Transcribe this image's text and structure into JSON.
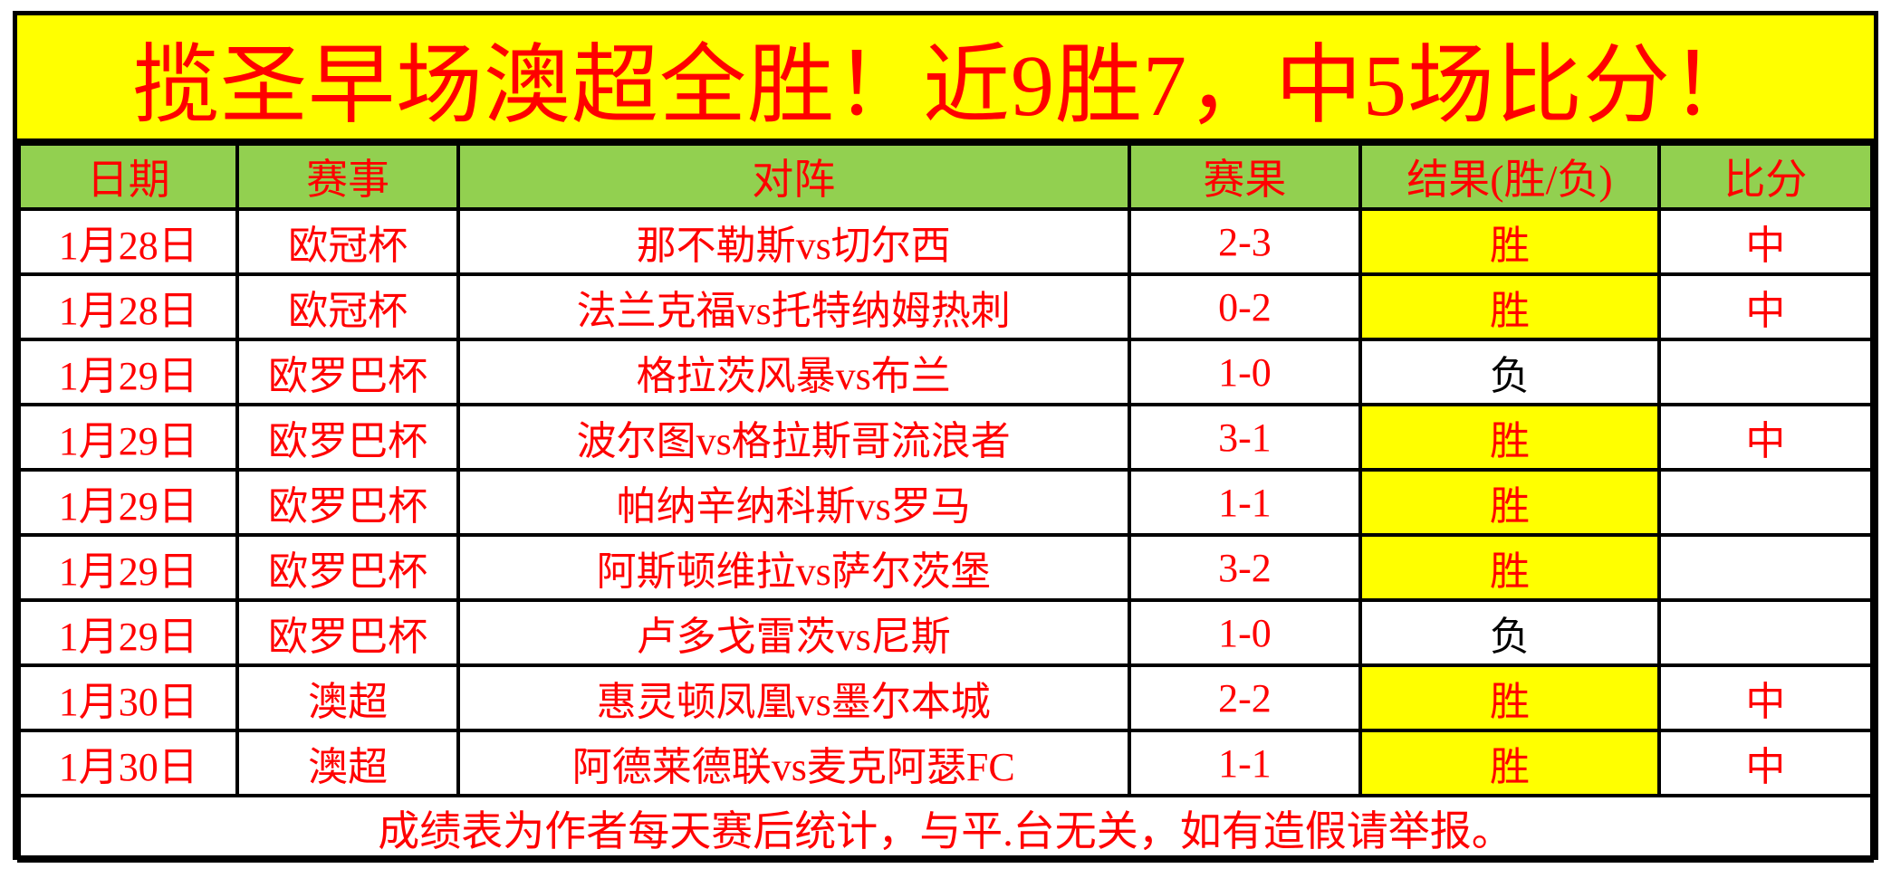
{
  "title": "揽圣早场澳超全胜！近9胜7，中5场比分！",
  "colors": {
    "title_bg": "#ffff00",
    "title_text": "#ff0000",
    "header_bg": "#92d050",
    "win_cell_bg": "#ffff00",
    "main_text": "#ff0000",
    "loss_text": "#000000",
    "border": "#000000"
  },
  "table": {
    "columns": [
      "日期",
      "赛事",
      "对阵",
      "赛果",
      "结果(胜/负)",
      "比分"
    ],
    "rows": [
      {
        "date": "1月28日",
        "competition": "欧冠杯",
        "match": "那不勒斯vs切尔西",
        "score": "2-3",
        "result": "胜",
        "result_type": "win",
        "hit": "中"
      },
      {
        "date": "1月28日",
        "competition": "欧冠杯",
        "match": "法兰克福vs托特纳姆热刺",
        "score": "0-2",
        "result": "胜",
        "result_type": "win",
        "hit": "中"
      },
      {
        "date": "1月29日",
        "competition": "欧罗巴杯",
        "match": "格拉茨风暴vs布兰",
        "score": "1-0",
        "result": "负",
        "result_type": "loss",
        "hit": ""
      },
      {
        "date": "1月29日",
        "competition": "欧罗巴杯",
        "match": "波尔图vs格拉斯哥流浪者",
        "score": "3-1",
        "result": "胜",
        "result_type": "win",
        "hit": "中"
      },
      {
        "date": "1月29日",
        "competition": "欧罗巴杯",
        "match": "帕纳辛纳科斯vs罗马",
        "score": "1-1",
        "result": "胜",
        "result_type": "win",
        "hit": ""
      },
      {
        "date": "1月29日",
        "competition": "欧罗巴杯",
        "match": "阿斯顿维拉vs萨尔茨堡",
        "score": "3-2",
        "result": "胜",
        "result_type": "win",
        "hit": ""
      },
      {
        "date": "1月29日",
        "competition": "欧罗巴杯",
        "match": "卢多戈雷茨vs尼斯",
        "score": "1-0",
        "result": "负",
        "result_type": "loss",
        "hit": ""
      },
      {
        "date": "1月30日",
        "competition": "澳超",
        "match": "惠灵顿凤凰vs墨尔本城",
        "score": "2-2",
        "result": "胜",
        "result_type": "win",
        "hit": "中"
      },
      {
        "date": "1月30日",
        "competition": "澳超",
        "match": "阿德莱德联vs麦克阿瑟FC",
        "score": "1-1",
        "result": "胜",
        "result_type": "win",
        "hit": "中"
      }
    ],
    "footer": "成绩表为作者每天赛后统计，与平.台无关，如有造假请举报。"
  }
}
